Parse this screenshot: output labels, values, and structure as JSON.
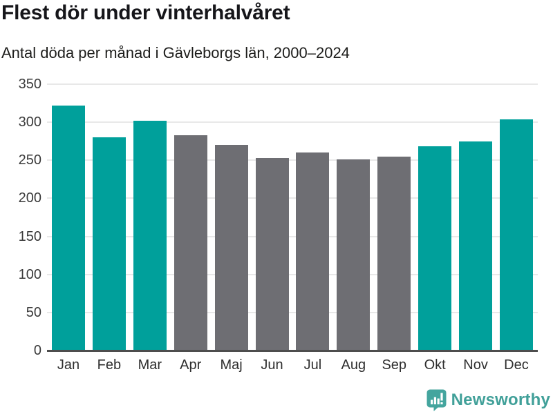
{
  "header": {
    "title": "Flest dör under vinterhalvåret",
    "subtitle": "Antal döda per månad i Gävleborgs län, 2000–2024"
  },
  "chart_data": {
    "type": "bar",
    "title": "Flest dör under vinterhalvåret",
    "subtitle": "Antal döda per månad i Gävleborgs län, 2000–2024",
    "categories": [
      "Jan",
      "Feb",
      "Mar",
      "Apr",
      "Maj",
      "Jun",
      "Jul",
      "Aug",
      "Sep",
      "Okt",
      "Nov",
      "Dec"
    ],
    "values": [
      322,
      280,
      302,
      283,
      270,
      253,
      260,
      251,
      255,
      268,
      275,
      304
    ],
    "highlighted": [
      true,
      true,
      true,
      false,
      false,
      false,
      false,
      false,
      false,
      true,
      true,
      true
    ],
    "xlabel": "",
    "ylabel": "",
    "ylim": [
      0,
      350
    ],
    "yticks": [
      0,
      50,
      100,
      150,
      200,
      250,
      300,
      350
    ],
    "grid": true,
    "legend_position": "none",
    "colors": {
      "highlight": "#00a09b",
      "muted": "#6e6e73",
      "gridline": "#e8e8e8",
      "axis_line": "#4d4d4d"
    }
  },
  "footer": {
    "brand": "Newsworthy",
    "brand_color": "#41a099",
    "icon": "newsworthy-speech-bubble-bar-chart-icon"
  }
}
